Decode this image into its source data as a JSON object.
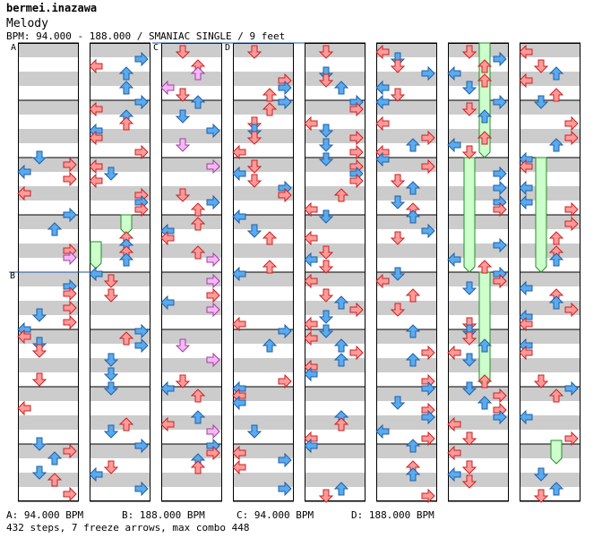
{
  "header": {
    "artist": "bermei.inazawa",
    "title": "Melody",
    "info": "BPM: 94.000 - 188.000 / SMANIAC SINGLE / 9 feet"
  },
  "bpm_markers": [
    "A",
    "B",
    "C",
    "D"
  ],
  "footer": {
    "bpm_a": "A: 94.000 BPM",
    "bpm_b": "B: 188.000 BPM",
    "bpm_c": "C: 94.000 BPM",
    "bpm_d": "D: 188.000 BPM",
    "stats": "432 steps, 7 freeze arrows, max combo 448"
  },
  "colors": {
    "red_arrow": "#ff9a9a",
    "red_stroke": "#cc2020",
    "blue_arrow": "#5aaaee",
    "blue_stroke": "#1f5fa8",
    "pink_arrow": "#f5b8f5",
    "pink_stroke": "#a040a0",
    "freeze": "#ccffcc",
    "freeze_stroke": "#2a8a2a",
    "stripe": "#cccccc",
    "divider": "#2050a0"
  },
  "icons": [
    "arrow-left-icon",
    "arrow-down-icon",
    "arrow-up-icon",
    "arrow-right-icon"
  ]
}
